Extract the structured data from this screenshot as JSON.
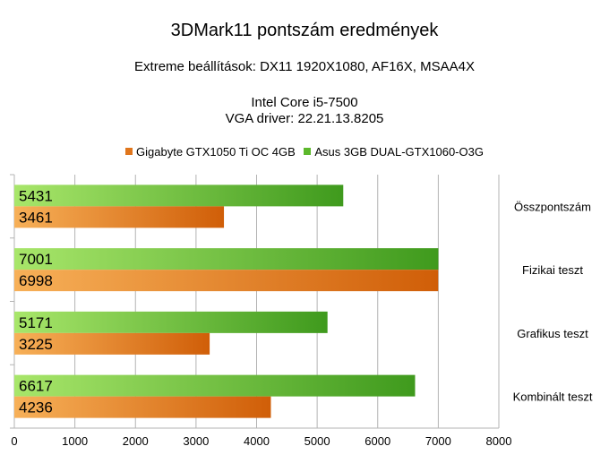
{
  "chart_data": {
    "type": "bar",
    "orientation": "horizontal",
    "title": "3DMark11 pontszám eredmények",
    "subtitle": [
      "Extreme beállítások: DX11 1920X1080, AF16X, MSAA4X",
      "Intel Core i5-7500",
      "VGA driver: 22.21.13.8205"
    ],
    "categories": [
      "Összpontszám",
      "Fizikai teszt",
      "Grafikus teszt",
      "Kombinált teszt"
    ],
    "series": [
      {
        "name": "Asus 3GB  DUAL-GTX1060-O3G",
        "values": [
          5431,
          7001,
          5171,
          6617
        ],
        "color": "#5cb82c"
      },
      {
        "name": "Gigabyte GTX1050 Ti OC 4GB",
        "values": [
          3461,
          6998,
          3225,
          4236
        ],
        "color": "#e0761c"
      }
    ],
    "legend_order": [
      "Gigabyte GTX1050 Ti OC 4GB",
      "Asus 3GB  DUAL-GTX1060-O3G"
    ],
    "legend_position": "top",
    "xlim": [
      0,
      8000
    ],
    "x_ticks": [
      0,
      1000,
      2000,
      3000,
      4000,
      5000,
      6000,
      7000,
      8000
    ],
    "grid": true,
    "data_labels": true,
    "category_labels_position": "right"
  }
}
